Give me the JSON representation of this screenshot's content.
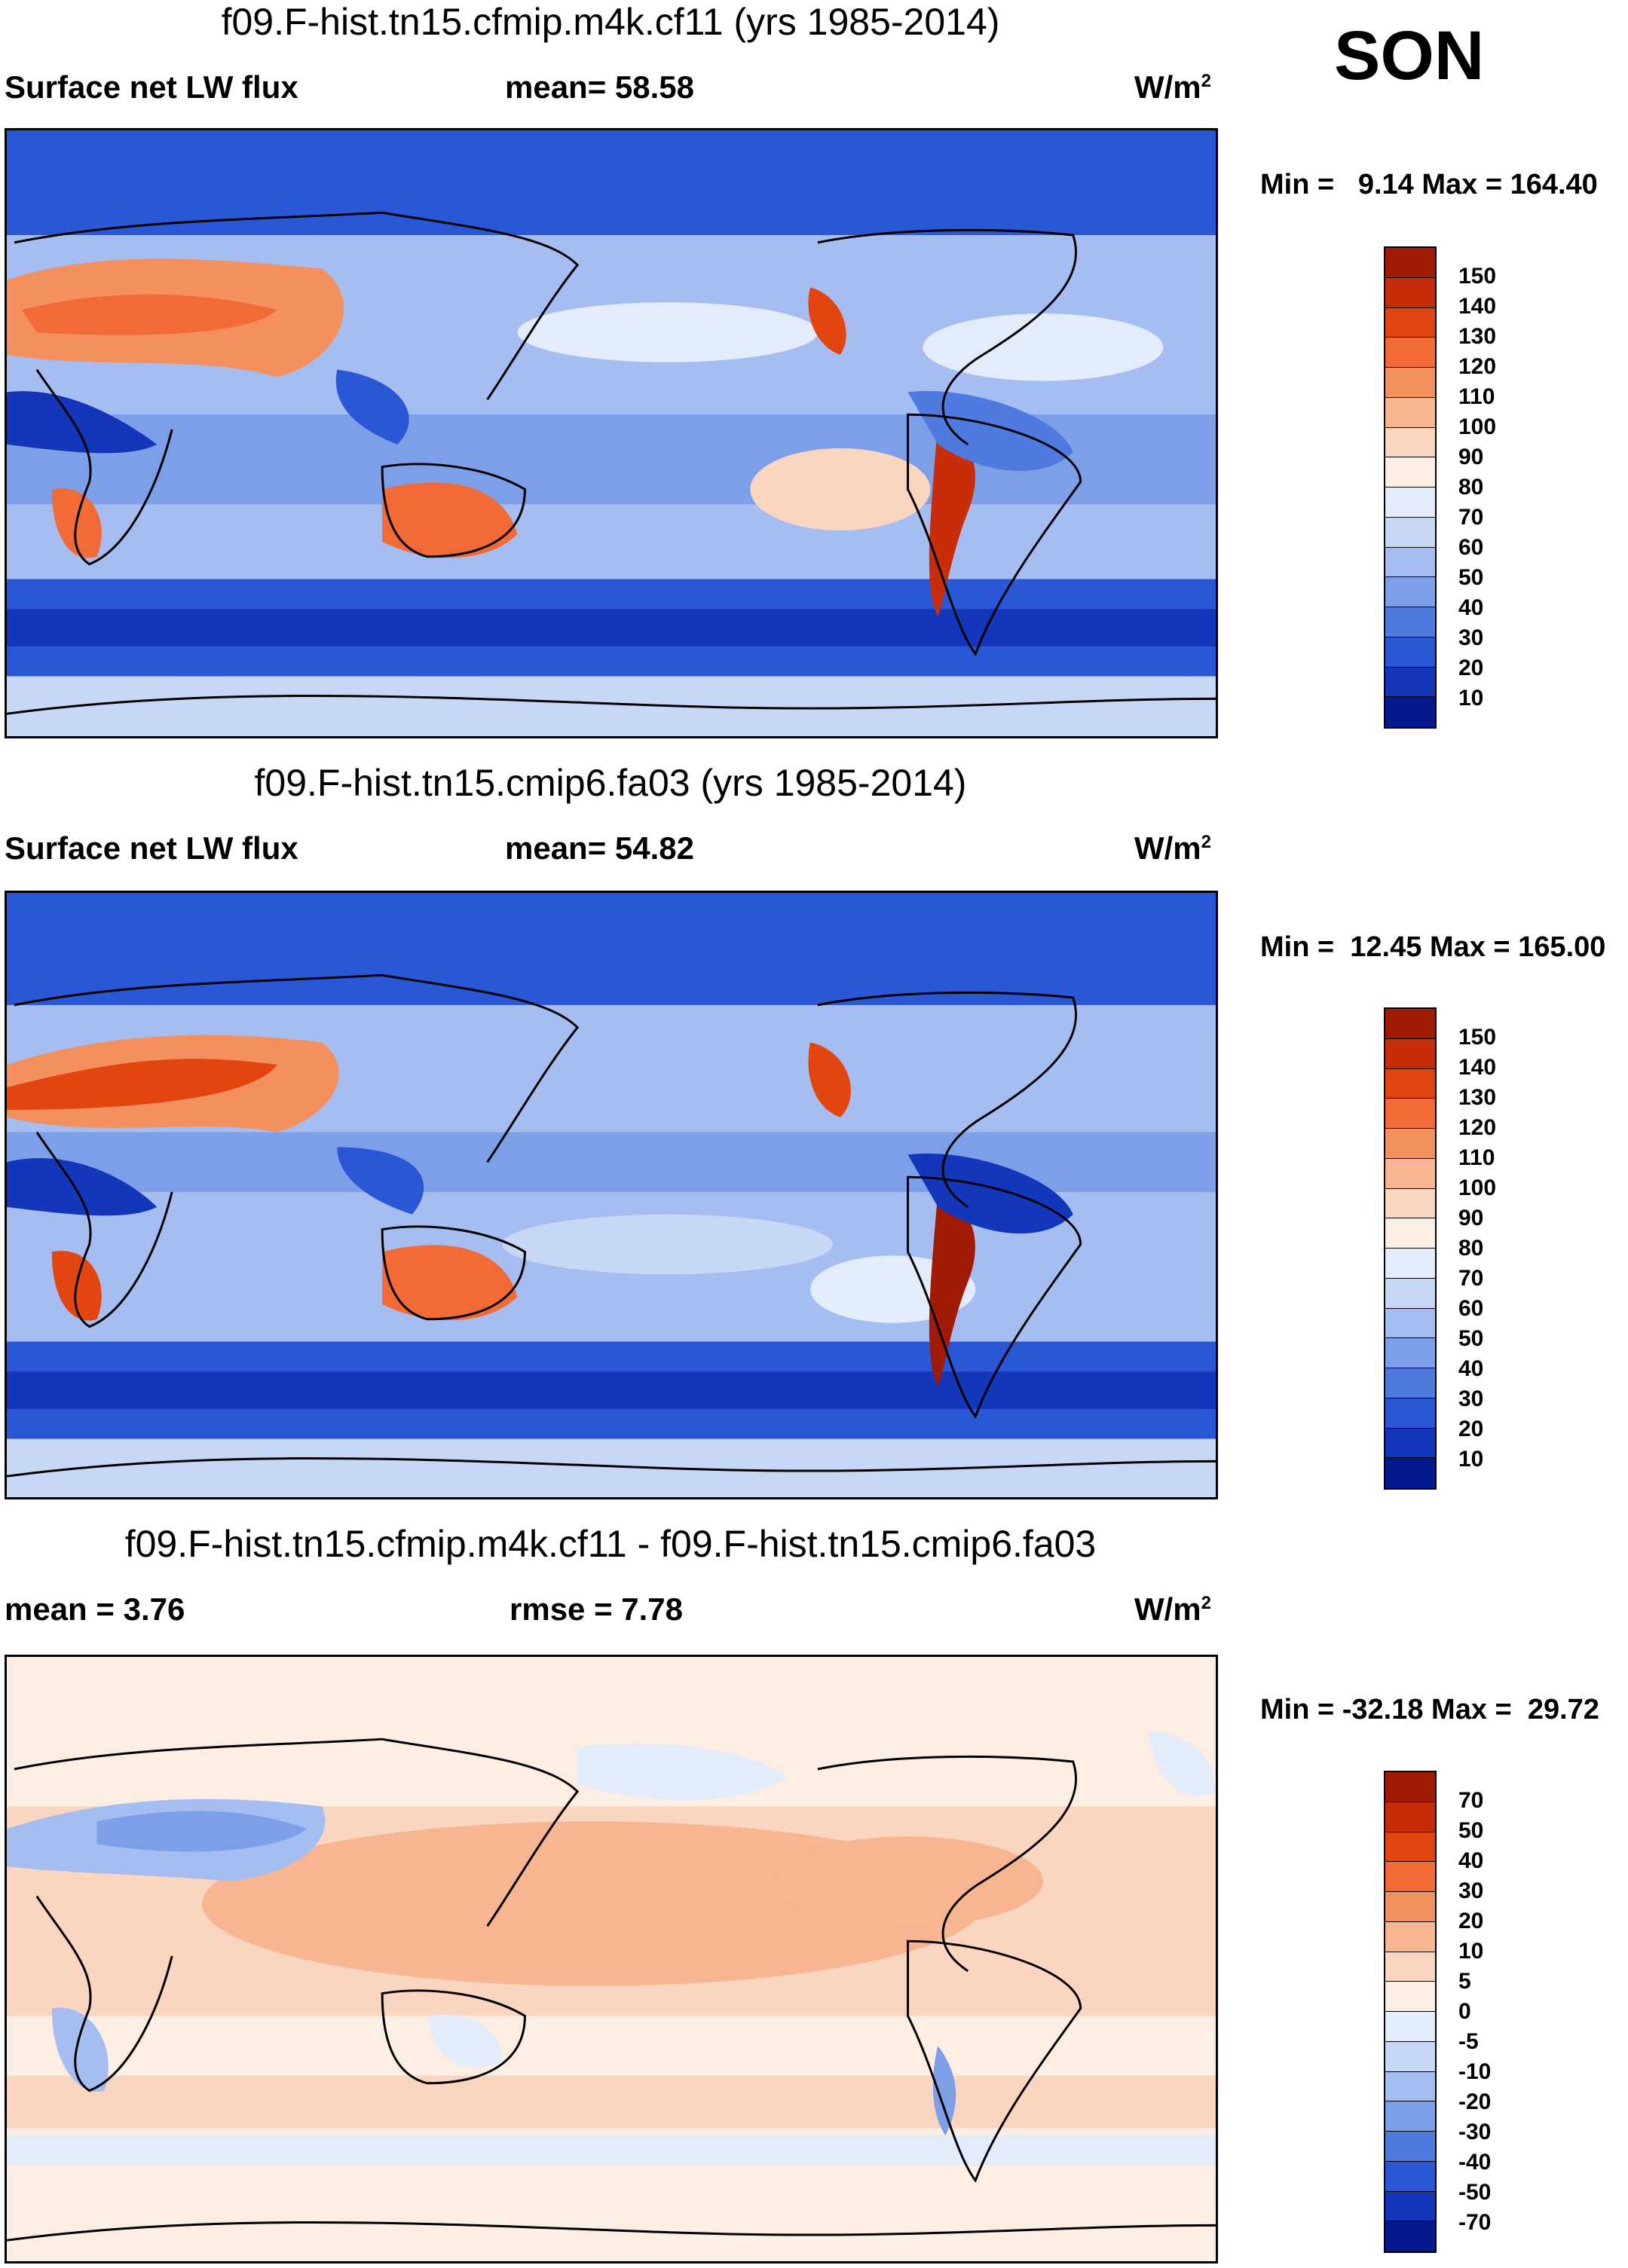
{
  "season": "SON",
  "units": "W/m",
  "units_sup": "2",
  "panels": [
    {
      "title": "f09.F-hist.tn15.cfmip.m4k.cf11 (yrs 1985-2014)",
      "left_label": "Surface net LW flux",
      "center_label": "mean=  58.58",
      "minmax": "Min =   9.14 Max = 164.40",
      "ticks": [
        "150",
        "140",
        "130",
        "120",
        "110",
        "100",
        "90",
        "80",
        "70",
        "60",
        "50",
        "40",
        "30",
        "20",
        "10"
      ],
      "colors": [
        "#a11a06",
        "#c62d08",
        "#e3450f",
        "#f26a35",
        "#f4905e",
        "#f7b592",
        "#fad5bf",
        "#fdeee3",
        "#e3ecfb",
        "#c7d7f6",
        "#a5bdf0",
        "#7c9fe8",
        "#4f7be0",
        "#2a57d6",
        "#1436bb",
        "#061a8f"
      ]
    },
    {
      "title": "f09.F-hist.tn15.cmip6.fa03 (yrs 1985-2014)",
      "left_label": "Surface net LW flux",
      "center_label": "mean=  54.82",
      "minmax": "Min =  12.45 Max = 165.00",
      "ticks": [
        "150",
        "140",
        "130",
        "120",
        "110",
        "100",
        "90",
        "80",
        "70",
        "60",
        "50",
        "40",
        "30",
        "20",
        "10"
      ],
      "colors": [
        "#a11a06",
        "#c62d08",
        "#e3450f",
        "#f26a35",
        "#f4905e",
        "#f7b592",
        "#fad5bf",
        "#fdeee3",
        "#e3ecfb",
        "#c7d7f6",
        "#a5bdf0",
        "#7c9fe8",
        "#4f7be0",
        "#2a57d6",
        "#1436bb",
        "#061a8f"
      ]
    },
    {
      "title": "f09.F-hist.tn15.cfmip.m4k.cf11 - f09.F-hist.tn15.cmip6.fa03",
      "left_label": "mean =   3.76",
      "center_label": "rmse =   7.78",
      "minmax": "Min = -32.18 Max =  29.72",
      "ticks": [
        "70",
        "50",
        "40",
        "30",
        "20",
        "10",
        "5",
        "0",
        "-5",
        "-10",
        "-20",
        "-30",
        "-40",
        "-50",
        "-70"
      ],
      "colors": [
        "#a11a06",
        "#c62d08",
        "#e3450f",
        "#f26a35",
        "#f4905e",
        "#f7b592",
        "#fad5bf",
        "#fdeee3",
        "#e3ecfb",
        "#c7d7f6",
        "#a5bdf0",
        "#7c9fe8",
        "#4f7be0",
        "#2a57d6",
        "#1436bb",
        "#061a8f"
      ]
    }
  ]
}
